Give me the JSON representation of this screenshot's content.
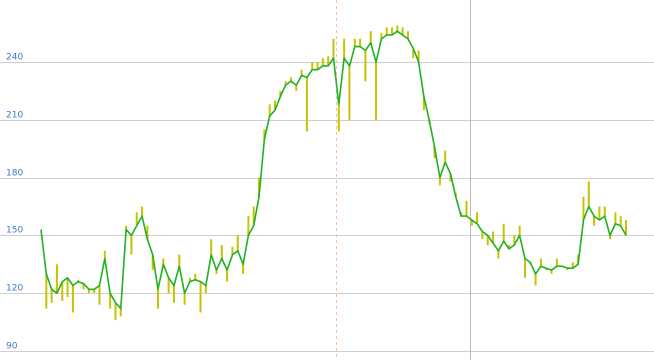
{
  "chart_data": {
    "type": "line",
    "title": "",
    "xlabel": "",
    "ylabel": "",
    "ylim": [
      88,
      258
    ],
    "y_ticks": [
      90,
      120,
      150,
      180,
      210,
      240
    ],
    "grid": "horizontal",
    "colors": {
      "line": "#1fb11f",
      "bars": "#c8c200",
      "tick_labels": "#3c78c8",
      "grid": "#cfcfcf"
    },
    "series": [
      {
        "kind": "line",
        "values": [
          153,
          130,
          122,
          120,
          126,
          128,
          124,
          126,
          125,
          122,
          122,
          124,
          138,
          120,
          115,
          112,
          153,
          150,
          155,
          160,
          148,
          140,
          122,
          135,
          128,
          124,
          134,
          120,
          126,
          127,
          126,
          124,
          140,
          132,
          138,
          132,
          140,
          142,
          135,
          150,
          155,
          170,
          200,
          212,
          215,
          222,
          228,
          230,
          228,
          233,
          232,
          236,
          236,
          238,
          238,
          242,
          218,
          242,
          238,
          248,
          248,
          246,
          250,
          240,
          252,
          254,
          254,
          256,
          254,
          252,
          247,
          240,
          222,
          210,
          196,
          180,
          188,
          182,
          170,
          160,
          160,
          158,
          156,
          152,
          150,
          146,
          142,
          147,
          143,
          145,
          150,
          138,
          136,
          130,
          134,
          133,
          132,
          134,
          134,
          133,
          133,
          135,
          158,
          165,
          160,
          158,
          160,
          150,
          156,
          155,
          150
        ]
      },
      {
        "kind": "bars",
        "values": [
          153,
          112,
          115,
          135,
          116,
          118,
          110,
          127,
          122,
          120,
          120,
          114,
          142,
          112,
          106,
          108,
          155,
          140,
          162,
          165,
          155,
          132,
          112,
          138,
          120,
          115,
          140,
          114,
          128,
          130,
          110,
          120,
          148,
          130,
          145,
          126,
          144,
          150,
          130,
          160,
          165,
          180,
          205,
          218,
          220,
          225,
          230,
          232,
          225,
          236,
          204,
          240,
          240,
          242,
          243,
          252,
          204,
          252,
          210,
          252,
          252,
          230,
          256,
          210,
          255,
          258,
          258,
          259,
          258,
          256,
          242,
          246,
          215,
          208,
          190,
          176,
          194,
          178,
          172,
          162,
          168,
          155,
          162,
          148,
          145,
          152,
          138,
          156,
          145,
          150,
          155,
          128,
          135,
          124,
          138,
          132,
          130,
          138,
          134,
          132,
          136,
          140,
          170,
          178,
          155,
          165,
          165,
          148,
          162,
          160,
          158
        ]
      }
    ]
  }
}
